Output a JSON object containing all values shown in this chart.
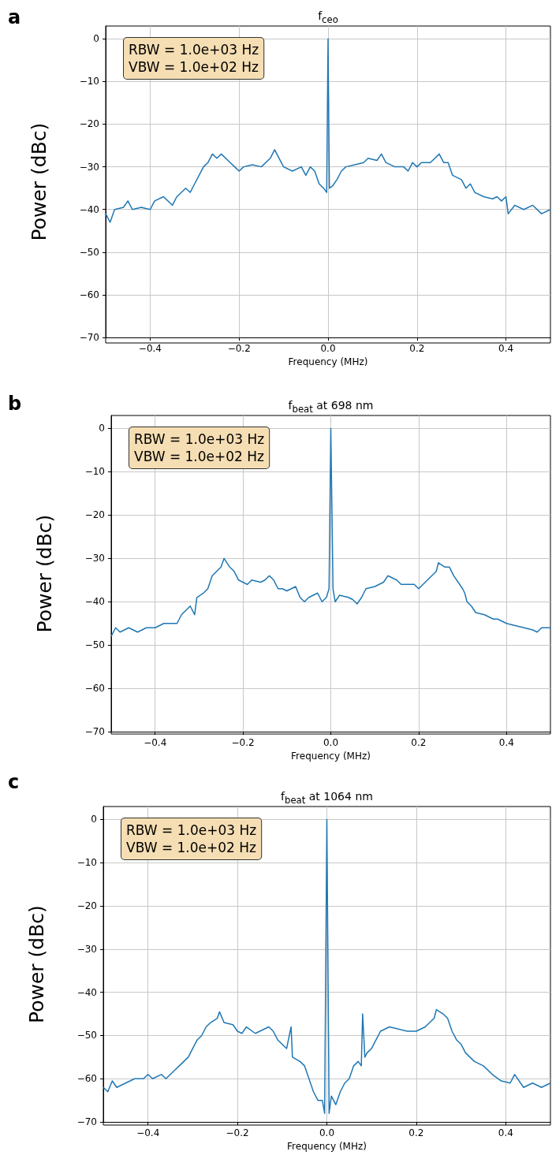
{
  "chart_data": [
    {
      "type": "line",
      "title": "f$_{ceo}$",
      "xlabel": "Frequency (MHz)",
      "ylabel": "Power (dBc)",
      "annotations": [
        "a",
        "RBW = 1.0e+03 Hz\nVBW = 1.0e+02 Hz"
      ],
      "x": [
        -0.5,
        -0.49,
        -0.48,
        -0.46,
        -0.45,
        -0.44,
        -0.42,
        -0.4,
        -0.39,
        -0.37,
        -0.35,
        -0.34,
        -0.32,
        -0.31,
        -0.3,
        -0.29,
        -0.28,
        -0.27,
        -0.26,
        -0.25,
        -0.24,
        -0.22,
        -0.21,
        -0.2,
        -0.19,
        -0.17,
        -0.15,
        -0.13,
        -0.12,
        -0.11,
        -0.1,
        -0.08,
        -0.06,
        -0.05,
        -0.04,
        -0.03,
        -0.02,
        -0.01,
        -0.003,
        0,
        0.003,
        0.01,
        0.02,
        0.03,
        0.04,
        0.06,
        0.08,
        0.09,
        0.11,
        0.12,
        0.13,
        0.15,
        0.17,
        0.18,
        0.19,
        0.2,
        0.21,
        0.23,
        0.25,
        0.26,
        0.27,
        0.28,
        0.3,
        0.31,
        0.32,
        0.33,
        0.35,
        0.37,
        0.38,
        0.39,
        0.4,
        0.405,
        0.42,
        0.44,
        0.46,
        0.48,
        0.5
      ],
      "series": [
        {
          "color": "#1f77b4",
          "values": [
            -41,
            -43,
            -40,
            -39.5,
            -38,
            -40,
            -39.5,
            -40,
            -38,
            -37,
            -39,
            -37,
            -35,
            -36,
            -34,
            -32,
            -30,
            -29,
            -27,
            -28,
            -27,
            -29,
            -30,
            -31,
            -30,
            -29.5,
            -30,
            -28,
            -26,
            -28,
            -30,
            -31,
            -30,
            -32,
            -30,
            -31,
            -34,
            -35,
            -36,
            0,
            -35,
            -34.5,
            -33,
            -31,
            -30,
            -29.5,
            -29,
            -28,
            -28.5,
            -27,
            -29,
            -30,
            -30,
            -31,
            -29,
            -30,
            -29,
            -29,
            -27,
            -29,
            -29,
            -32,
            -33,
            -35,
            -34,
            -36,
            -37,
            -37.5,
            -37,
            -38,
            -37,
            -41,
            -39,
            -40,
            -39,
            -41,
            -40
          ]
        }
      ],
      "xlim": [
        -0.5,
        0.5
      ],
      "xticks": [
        {
          "value": -0.4,
          "label": "−0.4"
        },
        {
          "value": -0.2,
          "label": "−0.2"
        },
        {
          "value": 0,
          "label": "0.0"
        },
        {
          "value": 0.2,
          "label": "0.2"
        },
        {
          "value": 0.4,
          "label": "0.4"
        }
      ],
      "ylim": [
        -70,
        3
      ],
      "yticks": [
        {
          "value": -70,
          "label": "−70"
        },
        {
          "value": -60,
          "label": "−60"
        },
        {
          "value": -50,
          "label": "−50"
        },
        {
          "value": -40,
          "label": "−40"
        },
        {
          "value": -30,
          "label": "−30"
        },
        {
          "value": -20,
          "label": "−20"
        },
        {
          "value": -10,
          "label": "−10"
        },
        {
          "value": 0,
          "label": "0"
        }
      ],
      "grid": true,
      "marker": "none",
      "line_style": "solid"
    },
    {
      "type": "line",
      "title": "f$_{beat}$ at 698 nm",
      "xlabel": "Frequency (MHz)",
      "ylabel": "Power (dBc)",
      "annotations": [
        "b",
        "RBW = 1.0e+03 Hz\nVBW = 1.0e+02 Hz"
      ],
      "x": [
        -0.5,
        -0.49,
        -0.48,
        -0.46,
        -0.44,
        -0.42,
        -0.4,
        -0.38,
        -0.36,
        -0.35,
        -0.34,
        -0.33,
        -0.32,
        -0.31,
        -0.305,
        -0.29,
        -0.28,
        -0.27,
        -0.26,
        -0.25,
        -0.243,
        -0.23,
        -0.22,
        -0.21,
        -0.2,
        -0.19,
        -0.18,
        -0.16,
        -0.15,
        -0.14,
        -0.13,
        -0.12,
        -0.11,
        -0.1,
        -0.08,
        -0.07,
        -0.06,
        -0.05,
        -0.03,
        -0.02,
        -0.01,
        -0.004,
        0,
        0.005,
        0.01,
        0.02,
        0.04,
        0.05,
        0.06,
        0.07,
        0.08,
        0.1,
        0.12,
        0.13,
        0.15,
        0.16,
        0.18,
        0.19,
        0.2,
        0.22,
        0.24,
        0.245,
        0.26,
        0.27,
        0.28,
        0.3,
        0.305,
        0.31,
        0.32,
        0.33,
        0.35,
        0.37,
        0.38,
        0.4,
        0.42,
        0.44,
        0.46,
        0.47,
        0.48,
        0.5
      ],
      "series": [
        {
          "color": "#1f77b4",
          "values": [
            -48,
            -46,
            -47,
            -46,
            -47,
            -46,
            -46,
            -45,
            -45,
            -45,
            -43,
            -42,
            -41,
            -43,
            -39,
            -38,
            -37,
            -34,
            -33,
            -32,
            -30,
            -32,
            -33,
            -35,
            -35.5,
            -36,
            -35,
            -35.5,
            -35,
            -34,
            -35,
            -37,
            -37,
            -37.5,
            -36.5,
            -39,
            -40,
            -39,
            -38,
            -40,
            -39,
            -37,
            0,
            -37,
            -40,
            -38.5,
            -39,
            -39.5,
            -40.5,
            -39,
            -37,
            -36.5,
            -35.5,
            -34,
            -35,
            -36,
            -36,
            -36,
            -37,
            -35,
            -33,
            -31,
            -32,
            -32,
            -34,
            -37,
            -38,
            -40,
            -41,
            -42.5,
            -43,
            -44,
            -44,
            -45,
            -45.5,
            -46,
            -46.5,
            -47,
            -46,
            -46
          ]
        }
      ],
      "xlim": [
        -0.5,
        0.5
      ],
      "xticks": [
        {
          "value": -0.4,
          "label": "−0.4"
        },
        {
          "value": -0.2,
          "label": "−0.2"
        },
        {
          "value": 0,
          "label": "0.0"
        },
        {
          "value": 0.2,
          "label": "0.2"
        },
        {
          "value": 0.4,
          "label": "0.4"
        }
      ],
      "ylim": [
        -70,
        3
      ],
      "yticks": [
        {
          "value": -70,
          "label": "−70"
        },
        {
          "value": -60,
          "label": "−60"
        },
        {
          "value": -50,
          "label": "−50"
        },
        {
          "value": -40,
          "label": "−40"
        },
        {
          "value": -30,
          "label": "−30"
        },
        {
          "value": -20,
          "label": "−20"
        },
        {
          "value": -10,
          "label": "−10"
        },
        {
          "value": 0,
          "label": "0"
        }
      ],
      "grid": true,
      "marker": "none",
      "line_style": "solid"
    },
    {
      "type": "line",
      "title": "f$_{beat}$ at 1064 nm",
      "xlabel": "Frequency (MHz)",
      "ylabel": "Power (dBc)",
      "annotations": [
        "c",
        "RBW = 1.0e+03 Hz\nVBW = 1.0e+02 Hz"
      ],
      "x": [
        -0.5,
        -0.49,
        -0.48,
        -0.47,
        -0.45,
        -0.43,
        -0.41,
        -0.4,
        -0.39,
        -0.37,
        -0.36,
        -0.34,
        -0.33,
        -0.31,
        -0.3,
        -0.29,
        -0.28,
        -0.27,
        -0.26,
        -0.245,
        -0.24,
        -0.23,
        -0.21,
        -0.2,
        -0.19,
        -0.18,
        -0.16,
        -0.14,
        -0.13,
        -0.12,
        -0.11,
        -0.1,
        -0.09,
        -0.08,
        -0.077,
        -0.06,
        -0.05,
        -0.04,
        -0.03,
        -0.02,
        -0.01,
        -0.005,
        0,
        0.005,
        0.01,
        0.02,
        0.03,
        0.04,
        0.05,
        0.06,
        0.07,
        0.077,
        0.08,
        0.085,
        0.09,
        0.1,
        0.11,
        0.12,
        0.14,
        0.16,
        0.18,
        0.2,
        0.22,
        0.24,
        0.245,
        0.26,
        0.27,
        0.28,
        0.29,
        0.3,
        0.31,
        0.33,
        0.35,
        0.37,
        0.39,
        0.41,
        0.42,
        0.44,
        0.46,
        0.48,
        0.5
      ],
      "series": [
        {
          "color": "#1f77b4",
          "values": [
            -62,
            -63,
            -60.5,
            -62,
            -61,
            -60,
            -60,
            -59,
            -60,
            -59,
            -60,
            -58,
            -57,
            -55,
            -53,
            -51,
            -50,
            -48,
            -47,
            -46,
            -44.5,
            -47,
            -47.5,
            -49,
            -49.5,
            -48,
            -49.5,
            -48.5,
            -48,
            -49,
            -51,
            -52,
            -53,
            -48,
            -55,
            -56,
            -57,
            -60,
            -63,
            -65,
            -65,
            -68,
            0,
            -68,
            -64,
            -66,
            -63,
            -61,
            -60,
            -57,
            -56,
            -57,
            -45,
            -55,
            -54,
            -53,
            -51,
            -49,
            -48,
            -48.5,
            -49,
            -49,
            -48,
            -46,
            -44,
            -45,
            -46,
            -49,
            -51,
            -52,
            -54,
            -56,
            -57,
            -59,
            -60.5,
            -61,
            -59,
            -62,
            -61,
            -62,
            -61
          ]
        }
      ],
      "xlim": [
        -0.5,
        0.5
      ],
      "xticks": [
        {
          "value": -0.4,
          "label": "−0.4"
        },
        {
          "value": -0.2,
          "label": "−0.2"
        },
        {
          "value": 0,
          "label": "0.0"
        },
        {
          "value": 0.2,
          "label": "0.2"
        },
        {
          "value": 0.4,
          "label": "0.4"
        }
      ],
      "ylim": [
        -70,
        3
      ],
      "yticks": [
        {
          "value": -70,
          "label": "−70"
        },
        {
          "value": -60,
          "label": "−60"
        },
        {
          "value": -50,
          "label": "−50"
        },
        {
          "value": -40,
          "label": "−40"
        },
        {
          "value": -30,
          "label": "−30"
        },
        {
          "value": -20,
          "label": "−20"
        },
        {
          "value": -10,
          "label": "−10"
        },
        {
          "value": 0,
          "label": "0"
        }
      ],
      "grid": true,
      "marker": "none",
      "line_style": "solid"
    }
  ]
}
